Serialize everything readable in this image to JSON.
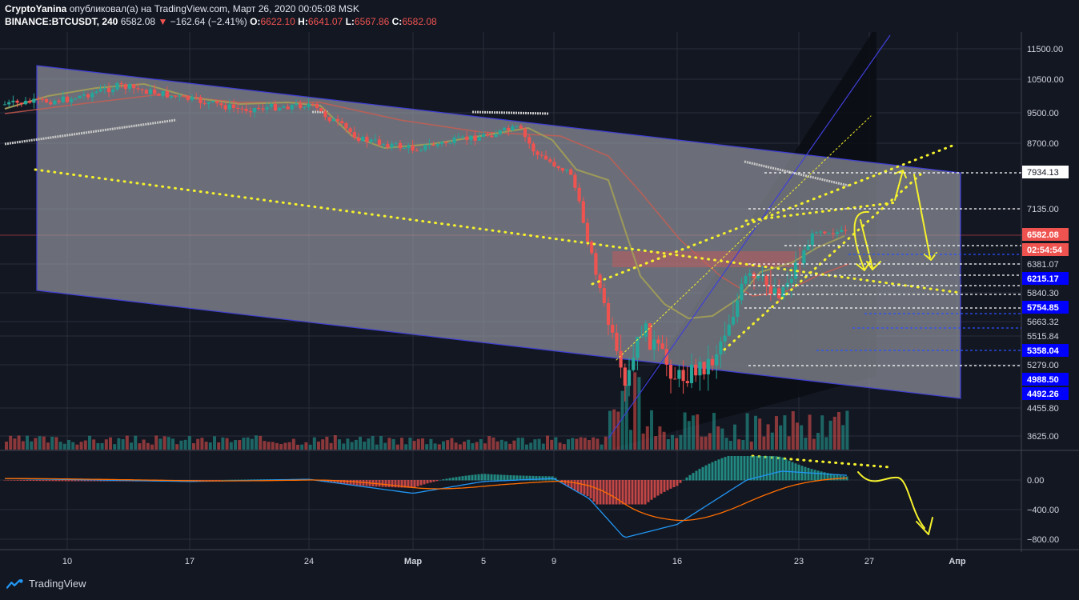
{
  "header": {
    "author": "CryptoYanina",
    "published_text": "опубликовал(а) на TradingView.com, Март 26, 2020 00:05:08 MSK",
    "symbol": "BINANCE:BTCUSDT, 240",
    "last": "6582.08",
    "arrow": "▼",
    "change": "−162.64 (−2.41%)",
    "o_label": "O:",
    "o_value": "6622.10",
    "h_label": "H:",
    "h_value": "6641.07",
    "l_label": "L:",
    "l_value": "6567.86",
    "c_label": "C:",
    "c_value": "6582.08"
  },
  "brand": {
    "name": "TradingView"
  },
  "colors": {
    "background": "#131722",
    "grid": "#2a2e39",
    "channel_fill": "#9598a1",
    "channel_line": "#3f3fd8",
    "yellow": "#f5f12d",
    "up": "#26a69a",
    "down": "#ef5350",
    "macd": "#2196f3",
    "signal": "#ff6d00",
    "price_badge": "#ef5350",
    "blue_badge": "#0000ff"
  },
  "chart_data": [
    {
      "type": "candlestick",
      "title": "BINANCE:BTCUSDT, 240",
      "x_tick_labels": [
        "10",
        "17",
        "24",
        "Мар",
        "5",
        "9",
        "16",
        "23",
        "27",
        "Апр"
      ],
      "y_tick_labels": [
        "11500.00",
        "10500.00",
        "9500.00",
        "8700.00",
        "7135.00",
        "6381.07",
        "5840.30",
        "5663.32",
        "5515.84",
        "5279.00",
        "4455.80",
        "3625.00"
      ],
      "price_badges": [
        {
          "value": "7934.13",
          "style": "white"
        },
        {
          "value": "6582.08",
          "style": "red"
        },
        {
          "value": "02:54:54",
          "style": "red"
        },
        {
          "value": "6215.17",
          "style": "blue"
        },
        {
          "value": "5754.85",
          "style": "blue"
        },
        {
          "value": "5358.04",
          "style": "blue"
        },
        {
          "value": "4988.50",
          "style": "blue"
        },
        {
          "value": "4492.26",
          "style": "blue"
        }
      ],
      "approx_close_path": [
        {
          "date": "Feb 7",
          "price": 9750
        },
        {
          "date": "Feb 10",
          "price": 9900
        },
        {
          "date": "Feb 13",
          "price": 10300
        },
        {
          "date": "Feb 17",
          "price": 9900
        },
        {
          "date": "Feb 20",
          "price": 9600
        },
        {
          "date": "Feb 24",
          "price": 9750
        },
        {
          "date": "Feb 27",
          "price": 8800
        },
        {
          "date": "Mar 1",
          "price": 8550
        },
        {
          "date": "Mar 5",
          "price": 8900
        },
        {
          "date": "Mar 7",
          "price": 9100
        },
        {
          "date": "Mar 8",
          "price": 8400
        },
        {
          "date": "Mar 10",
          "price": 7900
        },
        {
          "date": "Mar 12",
          "price": 5700
        },
        {
          "date": "Mar 13",
          "price": 4500
        },
        {
          "date": "Mar 14",
          "price": 5600
        },
        {
          "date": "Mar 16",
          "price": 5000
        },
        {
          "date": "Mar 18",
          "price": 5300
        },
        {
          "date": "Mar 20",
          "price": 6200
        },
        {
          "date": "Mar 22",
          "price": 5900
        },
        {
          "date": "Mar 24",
          "price": 6700
        },
        {
          "date": "Mar 26",
          "price": 6582.08
        }
      ]
    },
    {
      "type": "line",
      "title": "MACD",
      "y_tick_labels": [
        "0.00",
        "−400.00",
        "−800.00"
      ],
      "approx_macd": [
        {
          "date": "Feb 7",
          "value": 20
        },
        {
          "date": "Feb 17",
          "value": -20
        },
        {
          "date": "Feb 24",
          "value": 10
        },
        {
          "date": "Mar 1",
          "value": -180
        },
        {
          "date": "Mar 5",
          "value": -20
        },
        {
          "date": "Mar 9",
          "value": 20
        },
        {
          "date": "Mar 11",
          "value": -250
        },
        {
          "date": "Mar 13",
          "value": -780
        },
        {
          "date": "Mar 16",
          "value": -600
        },
        {
          "date": "Mar 20",
          "value": 0
        },
        {
          "date": "Mar 22",
          "value": 120
        },
        {
          "date": "Mar 26",
          "value": 60
        }
      ]
    }
  ]
}
